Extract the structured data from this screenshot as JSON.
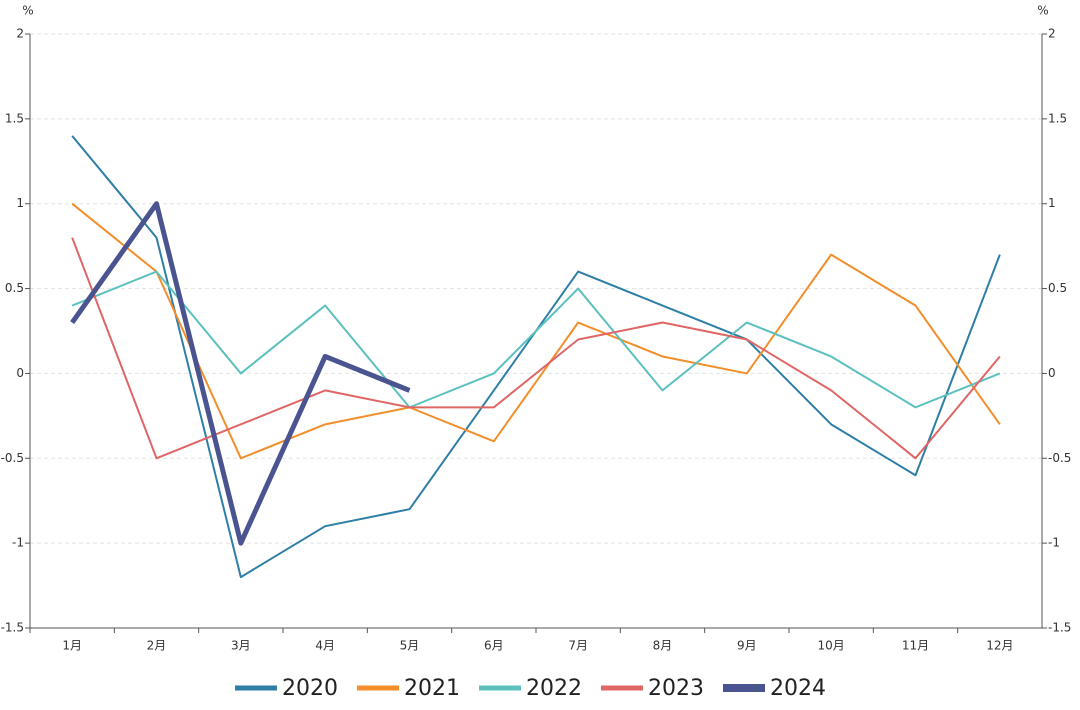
{
  "chart_data": {
    "type": "line",
    "y_label": "%",
    "y2_label": "%",
    "categories": [
      "1月",
      "2月",
      "3月",
      "4月",
      "5月",
      "6月",
      "7月",
      "8月",
      "9月",
      "10月",
      "11月",
      "12月"
    ],
    "series": [
      {
        "name": "2020",
        "color": "#2e7ea6",
        "values": [
          1.4,
          0.8,
          -1.2,
          -0.9,
          -0.8,
          -0.1,
          0.6,
          0.4,
          0.2,
          -0.3,
          -0.6,
          0.7
        ]
      },
      {
        "name": "2021",
        "color": "#f28e2b",
        "values": [
          1.0,
          0.6,
          -0.5,
          -0.3,
          -0.2,
          -0.4,
          0.3,
          0.1,
          0.0,
          0.7,
          0.4,
          -0.3
        ]
      },
      {
        "name": "2022",
        "color": "#5bc0be",
        "values": [
          0.4,
          0.6,
          0.0,
          0.4,
          -0.2,
          0.0,
          0.5,
          -0.1,
          0.3,
          0.1,
          -0.2,
          0.0
        ]
      },
      {
        "name": "2023",
        "color": "#e06666",
        "values": [
          0.8,
          -0.5,
          -0.3,
          -0.1,
          -0.2,
          -0.2,
          0.2,
          0.3,
          0.2,
          -0.1,
          -0.5,
          0.1
        ]
      },
      {
        "name": "2024",
        "color": "#4a5490",
        "values": [
          0.3,
          1.0,
          -1.0,
          0.1,
          -0.1,
          null,
          null,
          null,
          null,
          null,
          null,
          null
        ]
      }
    ],
    "ylim": [
      -1.5,
      2
    ],
    "yticks": [
      -1.5,
      -1,
      -0.5,
      0,
      0.5,
      1,
      1.5,
      2
    ],
    "y2lim": [
      -1.5,
      2
    ],
    "y2ticks": [
      -1.5,
      -1,
      -0.5,
      0,
      0.5,
      1,
      1.5,
      2
    ],
    "grid": true,
    "legend": "bottom"
  }
}
